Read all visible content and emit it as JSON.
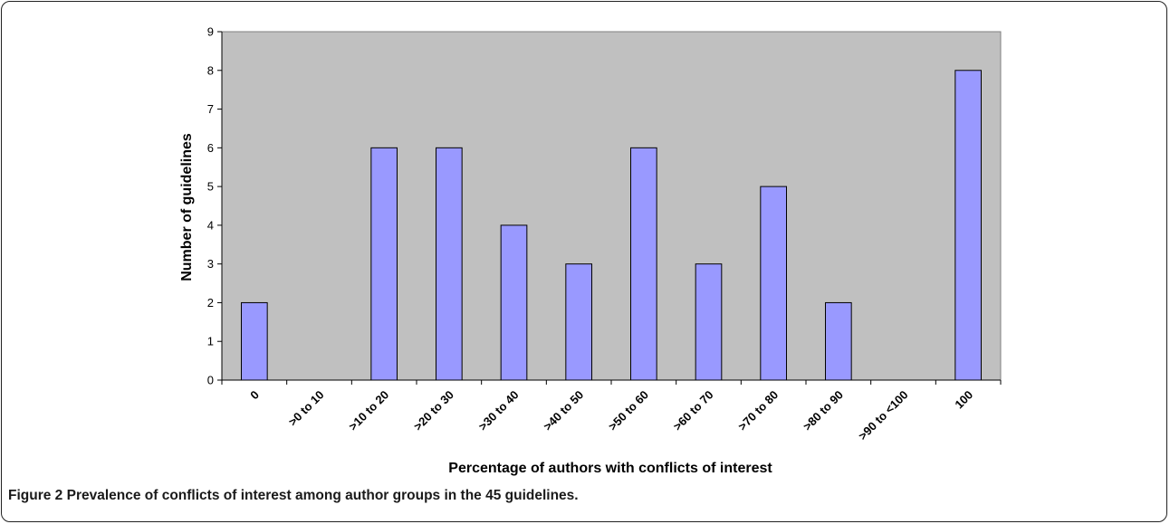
{
  "chart_data": {
    "type": "bar",
    "categories": [
      "0",
      ">0 to 10",
      ">10 to 20",
      ">20 to 30",
      ">30 to 40",
      ">40 to 50",
      ">50 to 60",
      ">60 to 70",
      ">70 to 80",
      ">80 to 90",
      ">90 to <100",
      "100"
    ],
    "values": [
      2,
      0,
      6,
      6,
      4,
      3,
      6,
      3,
      5,
      2,
      0,
      8
    ],
    "xlabel": "Percentage of authors with conflicts of interest",
    "ylabel": "Number of guidelines",
    "ylim": [
      0,
      9
    ],
    "yticks": [
      0,
      1,
      2,
      3,
      4,
      5,
      6,
      7,
      8,
      9
    ],
    "grid": false,
    "colors": {
      "bar": "#9999ff",
      "plot_background": "#c0c0c0",
      "bar_edge": "#000000"
    }
  },
  "caption": {
    "label": "Figure 2",
    "text": "Prevalence of conflicts of interest among author groups in the 45 guidelines."
  }
}
